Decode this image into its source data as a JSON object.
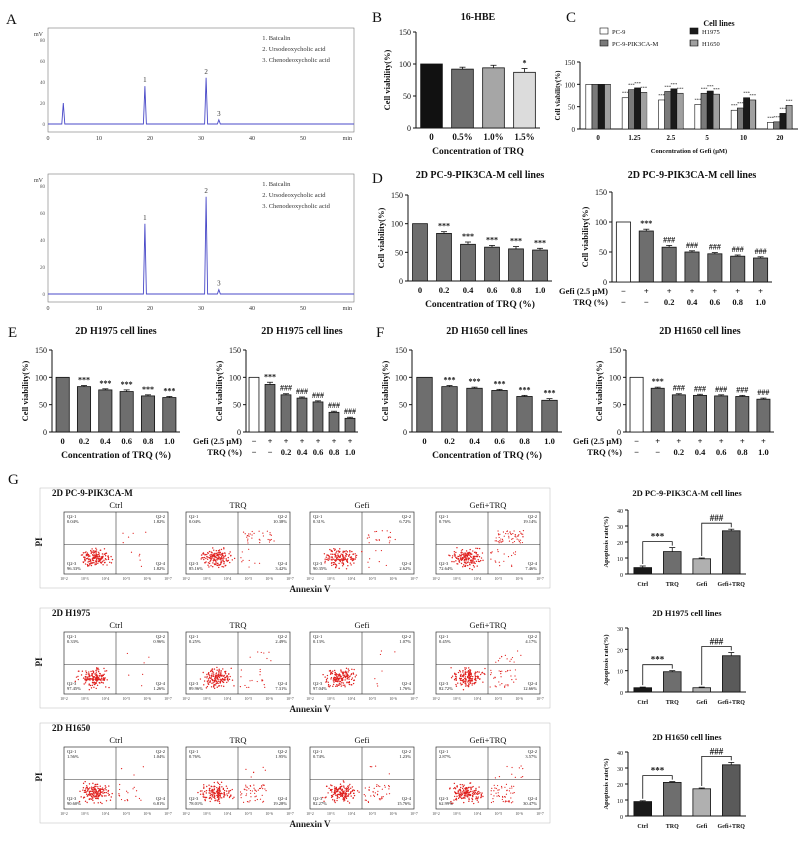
{
  "chart_data": [
    {
      "id": "A1",
      "type": "line",
      "panel": "A",
      "title": "",
      "ylabel": "mV",
      "xlabel": "min",
      "xlim": [
        0,
        60
      ],
      "xticks": [
        0,
        10,
        20,
        30,
        40,
        50
      ],
      "legend": [
        "1. Baicalin",
        "2. Ursodeoxycholic acid",
        "3. Chenodeoxycholic acid"
      ],
      "peaks": [
        {
          "x": 3.0,
          "h": 0.25,
          "label": ""
        },
        {
          "x": 19.0,
          "h": 0.45,
          "label": "1"
        },
        {
          "x": 31.0,
          "h": 0.55,
          "label": "2"
        },
        {
          "x": 33.5,
          "h": 0.05,
          "label": "3"
        }
      ]
    },
    {
      "id": "A2",
      "type": "line",
      "panel": "",
      "title": "",
      "ylabel": "mV",
      "xlabel": "min",
      "xlim": [
        0,
        60
      ],
      "xticks": [
        0,
        10,
        20,
        30,
        40,
        50
      ],
      "legend": [
        "1. Baicalin",
        "2. Ursodeoxycholic acid",
        "3. Chenodeoxycholic acid"
      ],
      "peaks": [
        {
          "x": 19.0,
          "h": 0.65,
          "label": "1"
        },
        {
          "x": 31.0,
          "h": 0.9,
          "label": "2"
        },
        {
          "x": 33.5,
          "h": 0.04,
          "label": "3"
        }
      ]
    },
    {
      "id": "B",
      "type": "bar",
      "panel": "B",
      "title": "16-HBE",
      "ylabel": "Cell viability(%)",
      "xlabel": "Concentration of TRQ",
      "ylim": [
        0,
        150
      ],
      "yticks": [
        0,
        50,
        100,
        150
      ],
      "categories": [
        "0",
        "0.5%",
        "1.0%",
        "1.5%"
      ],
      "values": [
        100,
        92,
        94,
        87
      ],
      "errors": [
        0,
        3,
        4,
        6
      ],
      "fills": [
        "#111111",
        "#6e6e6e",
        "#a6a6a6",
        "#dcdcdc"
      ],
      "sig": [
        "",
        "",
        "",
        "*"
      ]
    },
    {
      "id": "C",
      "type": "bar",
      "panel": "C",
      "title": "Cell lines",
      "ylabel": "Cell viability(%)",
      "xlabel": "Concentration of Gefi (μM)",
      "ylim": [
        0,
        150
      ],
      "yticks": [
        0,
        50,
        100,
        150
      ],
      "categories": [
        "0",
        "1.25",
        "2.5",
        "5",
        "10",
        "20"
      ],
      "legend": [
        "PC-9",
        "PC-9-PIK3CA-M",
        "H1975",
        "H1650"
      ],
      "series": [
        {
          "name": "PC-9",
          "values": [
            100,
            70,
            65,
            55,
            42,
            15
          ]
        },
        {
          "name": "PC-9-PIK3CA-M",
          "values": [
            100,
            88,
            84,
            80,
            47,
            16
          ]
        },
        {
          "name": "H1975",
          "values": [
            100,
            92,
            90,
            85,
            70,
            35
          ]
        },
        {
          "name": "H1650",
          "values": [
            100,
            82,
            80,
            78,
            65,
            53
          ]
        }
      ],
      "sig_text": "***"
    },
    {
      "id": "D1",
      "type": "bar",
      "panel": "D",
      "title": "2D PC-9-PIK3CA-M cell lines",
      "ylabel": "Cell viability(%)",
      "xlabel": "Concentration of TRQ (%)",
      "ylim": [
        0,
        150
      ],
      "yticks": [
        0,
        50,
        100,
        150
      ],
      "categories": [
        "0",
        "0.2",
        "0.4",
        "0.6",
        "0.8",
        "1.0"
      ],
      "values": [
        100,
        83,
        64,
        59,
        56,
        54
      ],
      "errors": [
        0,
        3,
        4,
        3,
        4,
        3
      ],
      "sig": [
        "",
        "***",
        "***",
        "***",
        "***",
        "***"
      ]
    },
    {
      "id": "D2",
      "type": "bar",
      "panel": "",
      "title": "2D PC-9-PIK3CA-M cell lines",
      "ylabel": "Cell viability(%)",
      "ylim": [
        0,
        150
      ],
      "yticks": [
        0,
        50,
        100,
        150
      ],
      "row1_label": "Gefi (2.5 μM)",
      "row2_label": "TRQ (%)",
      "row1": [
        "−",
        "+",
        "+",
        "+",
        "+",
        "+",
        "+"
      ],
      "row2": [
        "−",
        "−",
        "0.2",
        "0.4",
        "0.6",
        "0.8",
        "1.0"
      ],
      "values": [
        100,
        85,
        58,
        50,
        47,
        43,
        40
      ],
      "errors": [
        0,
        3,
        3,
        2,
        2,
        2,
        2
      ],
      "sig": [
        "",
        "***",
        "###",
        "###",
        "###",
        "###",
        "###"
      ]
    },
    {
      "id": "E1",
      "type": "bar",
      "panel": "E",
      "title": "2D H1975 cell lines",
      "ylabel": "Cell viability(%)",
      "xlabel": "Concentration of TRQ (%)",
      "ylim": [
        0,
        150
      ],
      "yticks": [
        0,
        50,
        100,
        150
      ],
      "categories": [
        "0",
        "0.2",
        "0.4",
        "0.6",
        "0.8",
        "1.0"
      ],
      "values": [
        100,
        83,
        77,
        74,
        66,
        63
      ],
      "errors": [
        0,
        2,
        2,
        3,
        2,
        2
      ],
      "sig": [
        "",
        "***",
        "***",
        "***",
        "***",
        "***"
      ]
    },
    {
      "id": "E2",
      "type": "bar",
      "panel": "",
      "title": "2D H1975 cell lines",
      "ylabel": "Cell viability(%)",
      "ylim": [
        0,
        150
      ],
      "yticks": [
        0,
        50,
        100,
        150
      ],
      "row1_label": "Gefi (2.5 μM)",
      "row2_label": "TRQ (%)",
      "row1": [
        "−",
        "+",
        "+",
        "+",
        "+",
        "+",
        "+"
      ],
      "row2": [
        "−",
        "−",
        "0.2",
        "0.4",
        "0.6",
        "0.8",
        "1.0"
      ],
      "values": [
        100,
        87,
        68,
        62,
        55,
        36,
        25
      ],
      "errors": [
        0,
        4,
        2,
        2,
        2,
        2,
        2
      ],
      "sig": [
        "",
        "***",
        "###",
        "###",
        "###",
        "###",
        "###"
      ]
    },
    {
      "id": "F1",
      "type": "bar",
      "panel": "F",
      "title": "2D H1650  cell lines",
      "ylabel": "Cell viability(%)",
      "xlabel": "Concentration of TRQ (%)",
      "ylim": [
        0,
        150
      ],
      "yticks": [
        0,
        50,
        100,
        150
      ],
      "categories": [
        "0",
        "0.2",
        "0.4",
        "0.6",
        "0.8",
        "1.0"
      ],
      "values": [
        100,
        83,
        80,
        76,
        65,
        58
      ],
      "errors": [
        0,
        2,
        2,
        2,
        2,
        3
      ],
      "sig": [
        "",
        "***",
        "***",
        "***",
        "***",
        "***"
      ]
    },
    {
      "id": "F2",
      "type": "bar",
      "panel": "",
      "title": "2D H1650  cell lines",
      "ylabel": "Cell viability(%)",
      "ylim": [
        0,
        150
      ],
      "yticks": [
        0,
        50,
        100,
        150
      ],
      "row1_label": "Gefi (2.5 μM)",
      "row2_label": "TRQ (%)",
      "row1": [
        "−",
        "+",
        "+",
        "+",
        "+",
        "+",
        "+"
      ],
      "row2": [
        "−",
        "−",
        "0.2",
        "0.4",
        "0.6",
        "0.8",
        "1.0"
      ],
      "values": [
        100,
        80,
        68,
        67,
        66,
        65,
        60
      ],
      "errors": [
        0,
        2,
        2,
        2,
        2,
        2,
        2
      ],
      "sig": [
        "",
        "***",
        "###",
        "###",
        "###",
        "###",
        "###"
      ]
    },
    {
      "id": "G-bar-1",
      "type": "bar",
      "panel": "",
      "title": "2D PC-9-PIK3CA-M cell lines",
      "ylabel": "Apoptosis rate(%)",
      "ylim": [
        0,
        40
      ],
      "yticks": [
        0,
        10,
        20,
        30,
        40
      ],
      "categories": [
        "Ctrl",
        "TRQ",
        "Gefi",
        "Gefi+TRQ"
      ],
      "values": [
        4,
        14,
        9.5,
        27
      ],
      "errors": [
        1,
        2.5,
        0.5,
        1
      ],
      "fills": [
        "#1a1a1a",
        "#6e6e6e",
        "#b0b0b0",
        "#5a5a5a"
      ],
      "brackets": [
        {
          "from": 0,
          "to": 1,
          "text": "***"
        },
        {
          "from": 2,
          "to": 3,
          "text": "###"
        }
      ]
    },
    {
      "id": "G-bar-2",
      "type": "bar",
      "panel": "",
      "title": "2D H1975 cell lines",
      "ylabel": "Apoptosis rate(%)",
      "ylim": [
        0,
        30
      ],
      "yticks": [
        0,
        10,
        20,
        30
      ],
      "categories": [
        "Ctrl",
        "TRQ",
        "Gefi",
        "Gefi+TRQ"
      ],
      "values": [
        2,
        9.5,
        2,
        17
      ],
      "errors": [
        0.3,
        0.5,
        0.3,
        1.5
      ],
      "fills": [
        "#1a1a1a",
        "#6e6e6e",
        "#b0b0b0",
        "#5a5a5a"
      ],
      "brackets": [
        {
          "from": 0,
          "to": 1,
          "text": "***"
        },
        {
          "from": 2,
          "to": 3,
          "text": "###"
        }
      ]
    },
    {
      "id": "G-bar-3",
      "type": "bar",
      "panel": "",
      "title": "2D H1650  cell lines",
      "ylabel": "Apoptosis rate(%)",
      "ylim": [
        0,
        40
      ],
      "yticks": [
        0,
        10,
        20,
        30,
        40
      ],
      "categories": [
        "Ctrl",
        "TRQ",
        "Gefi",
        "Gefi+TRQ"
      ],
      "values": [
        9,
        21,
        17,
        32
      ],
      "errors": [
        0.5,
        0.5,
        0.5,
        1.5
      ],
      "fills": [
        "#1a1a1a",
        "#6e6e6e",
        "#b0b0b0",
        "#5a5a5a"
      ],
      "brackets": [
        {
          "from": 0,
          "to": 1,
          "text": "***"
        },
        {
          "from": 2,
          "to": 3,
          "text": "###"
        }
      ]
    }
  ],
  "flow_panels": [
    {
      "row_title": "2D  PC-9-PIK3CA-M",
      "y_axis": "PI",
      "x_axis": "Annexin V",
      "plots": [
        {
          "title": "Ctrl",
          "q1": "Q2-1\n0.04%",
          "q2": "Q2-2\n1.82%",
          "q3": "Q2-3\n96.33%",
          "q4": "Q2-4\n1.82%"
        },
        {
          "title": "TRQ",
          "q1": "Q2-1\n0.04%",
          "q2": "Q2-2\n10.38%",
          "q3": "Q2-3\n85.16%",
          "q4": "Q2-4\n3.42%"
        },
        {
          "title": "Gefi",
          "q1": "Q2-1\n0.31%",
          "q2": "Q2-2\n6.72%",
          "q3": "Q2-3\n90.35%",
          "q4": "Q2-4\n2.62%"
        },
        {
          "title": "Gefi+TRQ",
          "q1": "Q2-1\n0.76%",
          "q2": "Q2-2\n19.14%",
          "q3": "Q2-3\n72.64%",
          "q4": "Q2-4\n7.46%"
        }
      ]
    },
    {
      "row_title": "2D  H1975",
      "y_axis": "PI",
      "x_axis": "Annexin V",
      "plots": [
        {
          "title": "Ctrl",
          "q1": "Q2-1\n0.33%",
          "q2": "Q2-2\n0.96%",
          "q3": "Q2-3\n97.45%",
          "q4": "Q2-4\n1.26%"
        },
        {
          "title": "TRQ",
          "q1": "Q2-1\n0.25%",
          "q2": "Q2-2\n2.49%",
          "q3": "Q2-3\n89.96%",
          "q4": "Q2-4\n7.31%"
        },
        {
          "title": "Gefi",
          "q1": "Q2-1\n0.13%",
          "q2": "Q2-2\n1.07%",
          "q3": "Q2-3\n97.04%",
          "q4": "Q2-4\n1.76%"
        },
        {
          "title": "Gefi+TRQ",
          "q1": "Q2-1\n0.45%",
          "q2": "Q2-2\n4.17%",
          "q3": "Q2-3\n82.72%",
          "q4": "Q2-4\n12.66%"
        }
      ]
    },
    {
      "row_title": "2D  H1650",
      "y_axis": "PI",
      "x_axis": "Annexin V",
      "plots": [
        {
          "title": "Ctrl",
          "q1": "Q2-1\n1.56%",
          "q2": "Q2-2\n1.04%",
          "q3": "Q2-3\n90.60%",
          "q4": "Q2-4\n6.81%"
        },
        {
          "title": "TRQ",
          "q1": "Q2-1\n0.76%",
          "q2": "Q2-2\n1.95%",
          "q3": "Q2-3\n78.01%",
          "q4": "Q2-4\n19.28%"
        },
        {
          "title": "Gefi",
          "q1": "Q2-1\n0.74%",
          "q2": "Q2-2\n1.23%",
          "q3": "Q2-3\n82.27%",
          "q4": "Q2-4\n15.76%"
        },
        {
          "title": "Gefi+TRQ",
          "q1": "Q2-1\n2.87%",
          "q2": "Q2-2\n3.57%",
          "q3": "Q2-3\n62.99%",
          "q4": "Q2-4\n30.47%"
        }
      ]
    }
  ],
  "panel_labels": {
    "A": "A",
    "B": "B",
    "C": "C",
    "D": "D",
    "E": "E",
    "F": "F",
    "G": "G"
  },
  "flow_tick_labels": [
    "10^2",
    "10^3",
    "10^4",
    "10^5",
    "10^6",
    "10^7"
  ]
}
